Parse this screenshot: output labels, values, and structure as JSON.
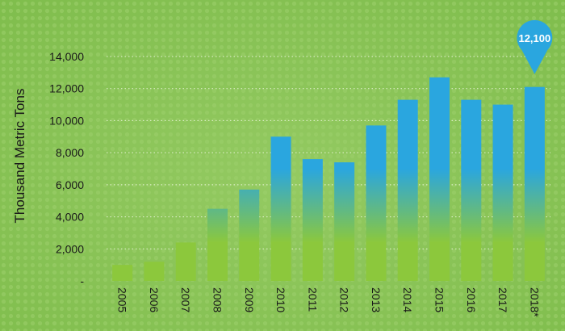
{
  "chart_data": {
    "type": "bar",
    "categories": [
      "2005",
      "2006",
      "2007",
      "2008",
      "2009",
      "2010",
      "2011",
      "2012",
      "2013",
      "2014",
      "2015",
      "2016",
      "2017",
      "2018*"
    ],
    "values": [
      1000,
      1200,
      2400,
      4500,
      5700,
      9000,
      7600,
      7400,
      9700,
      11300,
      12700,
      11300,
      11000,
      12100
    ],
    "ylabel": "Thousand Metric Tons",
    "xlabel": "",
    "ylim": [
      0,
      14000
    ],
    "yticks": [
      {
        "value": 0,
        "label": "-"
      },
      {
        "value": 2000,
        "label": "2,000"
      },
      {
        "value": 4000,
        "label": "4,000"
      },
      {
        "value": 6000,
        "label": "6,000"
      },
      {
        "value": 8000,
        "label": "8,000"
      },
      {
        "value": 10000,
        "label": "10,000"
      },
      {
        "value": 12000,
        "label": "12,000"
      },
      {
        "value": 14000,
        "label": "14,000"
      }
    ],
    "grid": "dotted horizontal",
    "callout": {
      "category": "2018*",
      "label": "12,100"
    }
  },
  "colors": {
    "background": "#8cc65a",
    "bar_top": "#2aa6df",
    "bar_bottom": "#8cc83c",
    "callout": "#2aa6df",
    "grid": "#e8f3d6",
    "text": "#1a1a1a"
  }
}
